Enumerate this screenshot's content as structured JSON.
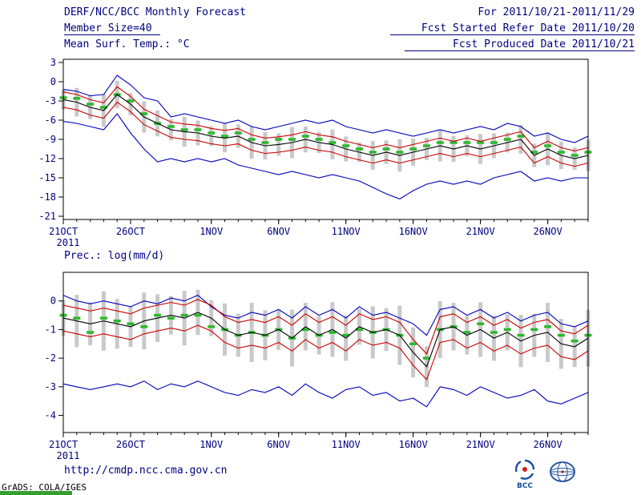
{
  "header": {
    "title": "DERF/NCC/BCC Monthly Forecast",
    "member_size": "Member Size=40",
    "panel1_label": "Mean Surf. Temp.: °C",
    "for_range": "For 2011/10/21-2011/11/29",
    "fcst_started": "Fcst Started Refer Date 2011/10/20",
    "fcst_produced": "Fcst Produced Date 2011/10/21"
  },
  "panel2_label": "Prec.: log(mm/d)",
  "footer": {
    "url": "http://cmdp.ncc.cma.gov.cn",
    "credit": "GrADS: COLA/IGES",
    "bcc_label": "BCC"
  },
  "colors": {
    "text": "#000080",
    "max_min_line": "#0000bb",
    "std_line": "#cc0000",
    "mean_line": "#000000",
    "median_dash": "#2db82d",
    "spread_bar": "#c9c9c9",
    "strip": "#33a02c"
  },
  "chart_data": [
    {
      "type": "line",
      "title": "Mean Surf. Temp.: °C",
      "ylabel": "°C",
      "ylim": [
        -21.5,
        3.5
      ],
      "yticks": [
        3,
        0,
        -3,
        -6,
        -9,
        -12,
        -15,
        -18,
        -21
      ],
      "n_points": 40,
      "x_tick_indices": [
        0,
        5,
        11,
        16,
        21,
        26,
        31,
        36
      ],
      "x_tick_labels": [
        "21OCT",
        "26OCT",
        "1NOV",
        "6NOV",
        "11NOV",
        "16NOV",
        "21NOV",
        "26NOV"
      ],
      "x_year_label": "2011",
      "legend_position": "none",
      "grid": false,
      "series": [
        {
          "name": "ensemble-max",
          "color": "#0000bb",
          "values": [
            -1.2,
            -1.5,
            -2.2,
            -2.0,
            1.0,
            -0.5,
            -2.5,
            -3.0,
            -5.5,
            -5.0,
            -5.5,
            -6.0,
            -6.5,
            -6.0,
            -7.0,
            -7.5,
            -7.0,
            -6.5,
            -6.0,
            -6.5,
            -6.0,
            -7.0,
            -7.5,
            -8.0,
            -7.5,
            -8.0,
            -8.5,
            -8.0,
            -7.5,
            -8.0,
            -7.5,
            -7.0,
            -7.5,
            -6.5,
            -7.0,
            -8.5,
            -8.0,
            -9.0,
            -9.5,
            -8.5
          ]
        },
        {
          "name": "mean-plus-std",
          "color": "#cc0000",
          "values": [
            -1.6,
            -2.0,
            -2.8,
            -3.3,
            -0.8,
            -2.3,
            -4.3,
            -5.3,
            -6.3,
            -6.6,
            -6.8,
            -7.3,
            -7.6,
            -7.3,
            -8.3,
            -8.8,
            -8.6,
            -8.3,
            -7.8,
            -8.3,
            -8.6,
            -9.3,
            -9.8,
            -10.3,
            -9.8,
            -10.3,
            -9.8,
            -9.3,
            -8.8,
            -9.3,
            -8.8,
            -9.3,
            -8.8,
            -8.3,
            -7.8,
            -10.3,
            -9.3,
            -10.3,
            -10.8,
            -10.3
          ]
        },
        {
          "name": "ensemble-mean",
          "color": "#000000",
          "values": [
            -2.8,
            -3.2,
            -4.0,
            -4.5,
            -2.0,
            -3.5,
            -5.5,
            -6.5,
            -7.5,
            -7.8,
            -8.0,
            -8.5,
            -8.8,
            -8.5,
            -9.5,
            -10.0,
            -9.8,
            -9.5,
            -9.0,
            -9.5,
            -9.8,
            -10.5,
            -11.0,
            -11.5,
            -11.0,
            -11.5,
            -11.0,
            -10.5,
            -10.0,
            -10.5,
            -10.0,
            -10.5,
            -10.0,
            -9.5,
            -9.0,
            -11.5,
            -10.5,
            -11.5,
            -12.0,
            -11.5
          ]
        },
        {
          "name": "mean-minus-std",
          "color": "#cc0000",
          "values": [
            -4.0,
            -4.4,
            -5.2,
            -5.7,
            -3.2,
            -4.7,
            -6.7,
            -7.7,
            -8.7,
            -9.0,
            -9.2,
            -9.7,
            -10.0,
            -9.7,
            -10.7,
            -11.2,
            -11.0,
            -10.7,
            -10.2,
            -10.7,
            -11.0,
            -11.7,
            -12.2,
            -12.7,
            -12.2,
            -12.7,
            -12.2,
            -11.7,
            -11.2,
            -11.7,
            -11.2,
            -11.7,
            -11.2,
            -10.7,
            -10.2,
            -12.7,
            -11.7,
            -12.7,
            -13.2,
            -12.7
          ]
        },
        {
          "name": "ensemble-min",
          "color": "#0000bb",
          "values": [
            -6.2,
            -6.5,
            -7.0,
            -7.5,
            -5.0,
            -8.0,
            -10.5,
            -12.5,
            -12.0,
            -12.5,
            -12.0,
            -12.5,
            -12.0,
            -13.0,
            -13.5,
            -14.0,
            -14.5,
            -14.0,
            -14.5,
            -15.0,
            -14.5,
            -15.0,
            -15.5,
            -16.5,
            -17.5,
            -18.3,
            -17.0,
            -16.0,
            -15.5,
            -16.0,
            -15.5,
            -16.0,
            -15.0,
            -14.5,
            -14.0,
            -15.5,
            -15.0,
            -15.5,
            -15.0,
            -15.0
          ]
        }
      ],
      "median": {
        "name": "ensemble-median",
        "color": "#2db82d",
        "values": [
          -2.5,
          -2.6,
          -3.5,
          -4.0,
          -2.0,
          -3.0,
          -5.0,
          -6.5,
          -7.0,
          -7.5,
          -7.5,
          -8.0,
          -8.5,
          -8.0,
          -9.0,
          -9.5,
          -9.0,
          -9.0,
          -8.5,
          -9.0,
          -9.5,
          -10.0,
          -10.5,
          -11.0,
          -10.5,
          -11.0,
          -10.5,
          -10.0,
          -9.5,
          -9.5,
          -9.5,
          -9.5,
          -9.5,
          -9.0,
          -8.5,
          -11.0,
          -10.0,
          -11.0,
          -11.5,
          -11.0
        ]
      },
      "bars": {
        "name": "member-spread",
        "color": "#c9c9c9",
        "center": "ensemble-mean",
        "halfspan": 2.2
      }
    },
    {
      "type": "line",
      "title": "Prec.: log(mm/d)",
      "ylabel": "log(mm/d)",
      "ylim": [
        -4.6,
        1.0
      ],
      "yticks": [
        0,
        -1,
        -2,
        -3,
        -4
      ],
      "n_points": 40,
      "x_tick_indices": [
        0,
        5,
        11,
        16,
        21,
        26,
        31,
        36
      ],
      "x_tick_labels": [
        "21OCT",
        "26OCT",
        "1NOV",
        "6NOV",
        "11NOV",
        "16NOV",
        "21NOV",
        "26NOV"
      ],
      "x_year_label": "2011",
      "legend_position": "none",
      "grid": false,
      "series": [
        {
          "name": "ensemble-max",
          "color": "#0000bb",
          "values": [
            0.2,
            0.0,
            -0.1,
            0.0,
            -0.1,
            -0.2,
            0.0,
            -0.1,
            0.1,
            0.0,
            0.2,
            -0.2,
            -0.5,
            -0.6,
            -0.4,
            -0.5,
            -0.3,
            -0.6,
            -0.2,
            -0.5,
            -0.3,
            -0.6,
            -0.2,
            -0.5,
            -0.4,
            -0.6,
            -0.8,
            -1.2,
            -0.3,
            -0.2,
            -0.5,
            -0.3,
            -0.6,
            -0.4,
            -0.7,
            -0.5,
            -0.4,
            -0.8,
            -0.9,
            -0.7
          ]
        },
        {
          "name": "mean-plus-std",
          "color": "#cc0000",
          "values": [
            -0.15,
            -0.25,
            -0.35,
            -0.25,
            -0.35,
            -0.45,
            -0.25,
            -0.15,
            -0.05,
            -0.15,
            0.05,
            -0.15,
            -0.55,
            -0.75,
            -0.65,
            -0.75,
            -0.55,
            -0.85,
            -0.45,
            -0.75,
            -0.55,
            -0.85,
            -0.45,
            -0.65,
            -0.55,
            -0.75,
            -1.35,
            -1.85,
            -0.55,
            -0.45,
            -0.75,
            -0.55,
            -0.85,
            -0.65,
            -0.95,
            -0.75,
            -0.65,
            -1.05,
            -1.15,
            -0.85
          ]
        },
        {
          "name": "ensemble-mean",
          "color": "#000000",
          "values": [
            -0.6,
            -0.7,
            -0.8,
            -0.7,
            -0.8,
            -0.9,
            -0.7,
            -0.6,
            -0.5,
            -0.6,
            -0.4,
            -0.6,
            -1.0,
            -1.2,
            -1.1,
            -1.2,
            -1.0,
            -1.3,
            -0.9,
            -1.2,
            -1.0,
            -1.3,
            -0.9,
            -1.1,
            -1.0,
            -1.2,
            -1.8,
            -2.3,
            -1.0,
            -0.9,
            -1.2,
            -1.0,
            -1.3,
            -1.1,
            -1.4,
            -1.2,
            -1.1,
            -1.5,
            -1.6,
            -1.3
          ]
        },
        {
          "name": "mean-minus-std",
          "color": "#cc0000",
          "values": [
            -1.05,
            -1.15,
            -1.25,
            -1.15,
            -1.25,
            -1.35,
            -1.15,
            -1.05,
            -0.95,
            -1.05,
            -0.85,
            -1.05,
            -1.45,
            -1.65,
            -1.55,
            -1.65,
            -1.45,
            -1.75,
            -1.35,
            -1.65,
            -1.45,
            -1.75,
            -1.35,
            -1.55,
            -1.45,
            -1.65,
            -2.25,
            -2.75,
            -1.45,
            -1.35,
            -1.65,
            -1.45,
            -1.75,
            -1.55,
            -1.85,
            -1.65,
            -1.55,
            -1.95,
            -2.05,
            -1.75
          ]
        },
        {
          "name": "ensemble-min",
          "color": "#0000bb",
          "values": [
            -2.9,
            -3.0,
            -3.1,
            -3.0,
            -2.9,
            -3.0,
            -2.8,
            -3.1,
            -2.9,
            -3.0,
            -2.8,
            -3.0,
            -3.2,
            -3.3,
            -3.1,
            -3.2,
            -3.0,
            -3.3,
            -2.9,
            -3.2,
            -3.4,
            -3.1,
            -3.0,
            -3.3,
            -3.2,
            -3.5,
            -3.4,
            -3.7,
            -3.0,
            -3.1,
            -3.3,
            -3.0,
            -3.2,
            -3.4,
            -3.3,
            -3.1,
            -3.5,
            -3.6,
            -3.4,
            -3.2
          ]
        }
      ],
      "median": {
        "name": "ensemble-median",
        "color": "#2db82d",
        "values": [
          -0.5,
          -0.6,
          -1.1,
          -0.6,
          -0.7,
          -0.8,
          -0.9,
          -0.5,
          -0.6,
          -0.5,
          -0.5,
          -0.9,
          -1.0,
          -1.2,
          -1.1,
          -1.2,
          -1.0,
          -1.3,
          -1.0,
          -1.2,
          -1.1,
          -1.2,
          -1.0,
          -1.1,
          -1.0,
          -1.2,
          -1.5,
          -2.0,
          -1.0,
          -0.9,
          -1.1,
          -0.8,
          -1.1,
          -1.0,
          -1.2,
          -1.0,
          -0.9,
          -1.2,
          -1.4,
          -1.2
        ]
      },
      "bars": {
        "name": "member-spread",
        "color": "#c9c9c9",
        "center": "ensemble-mean",
        "halfspan": 0.9
      }
    }
  ]
}
